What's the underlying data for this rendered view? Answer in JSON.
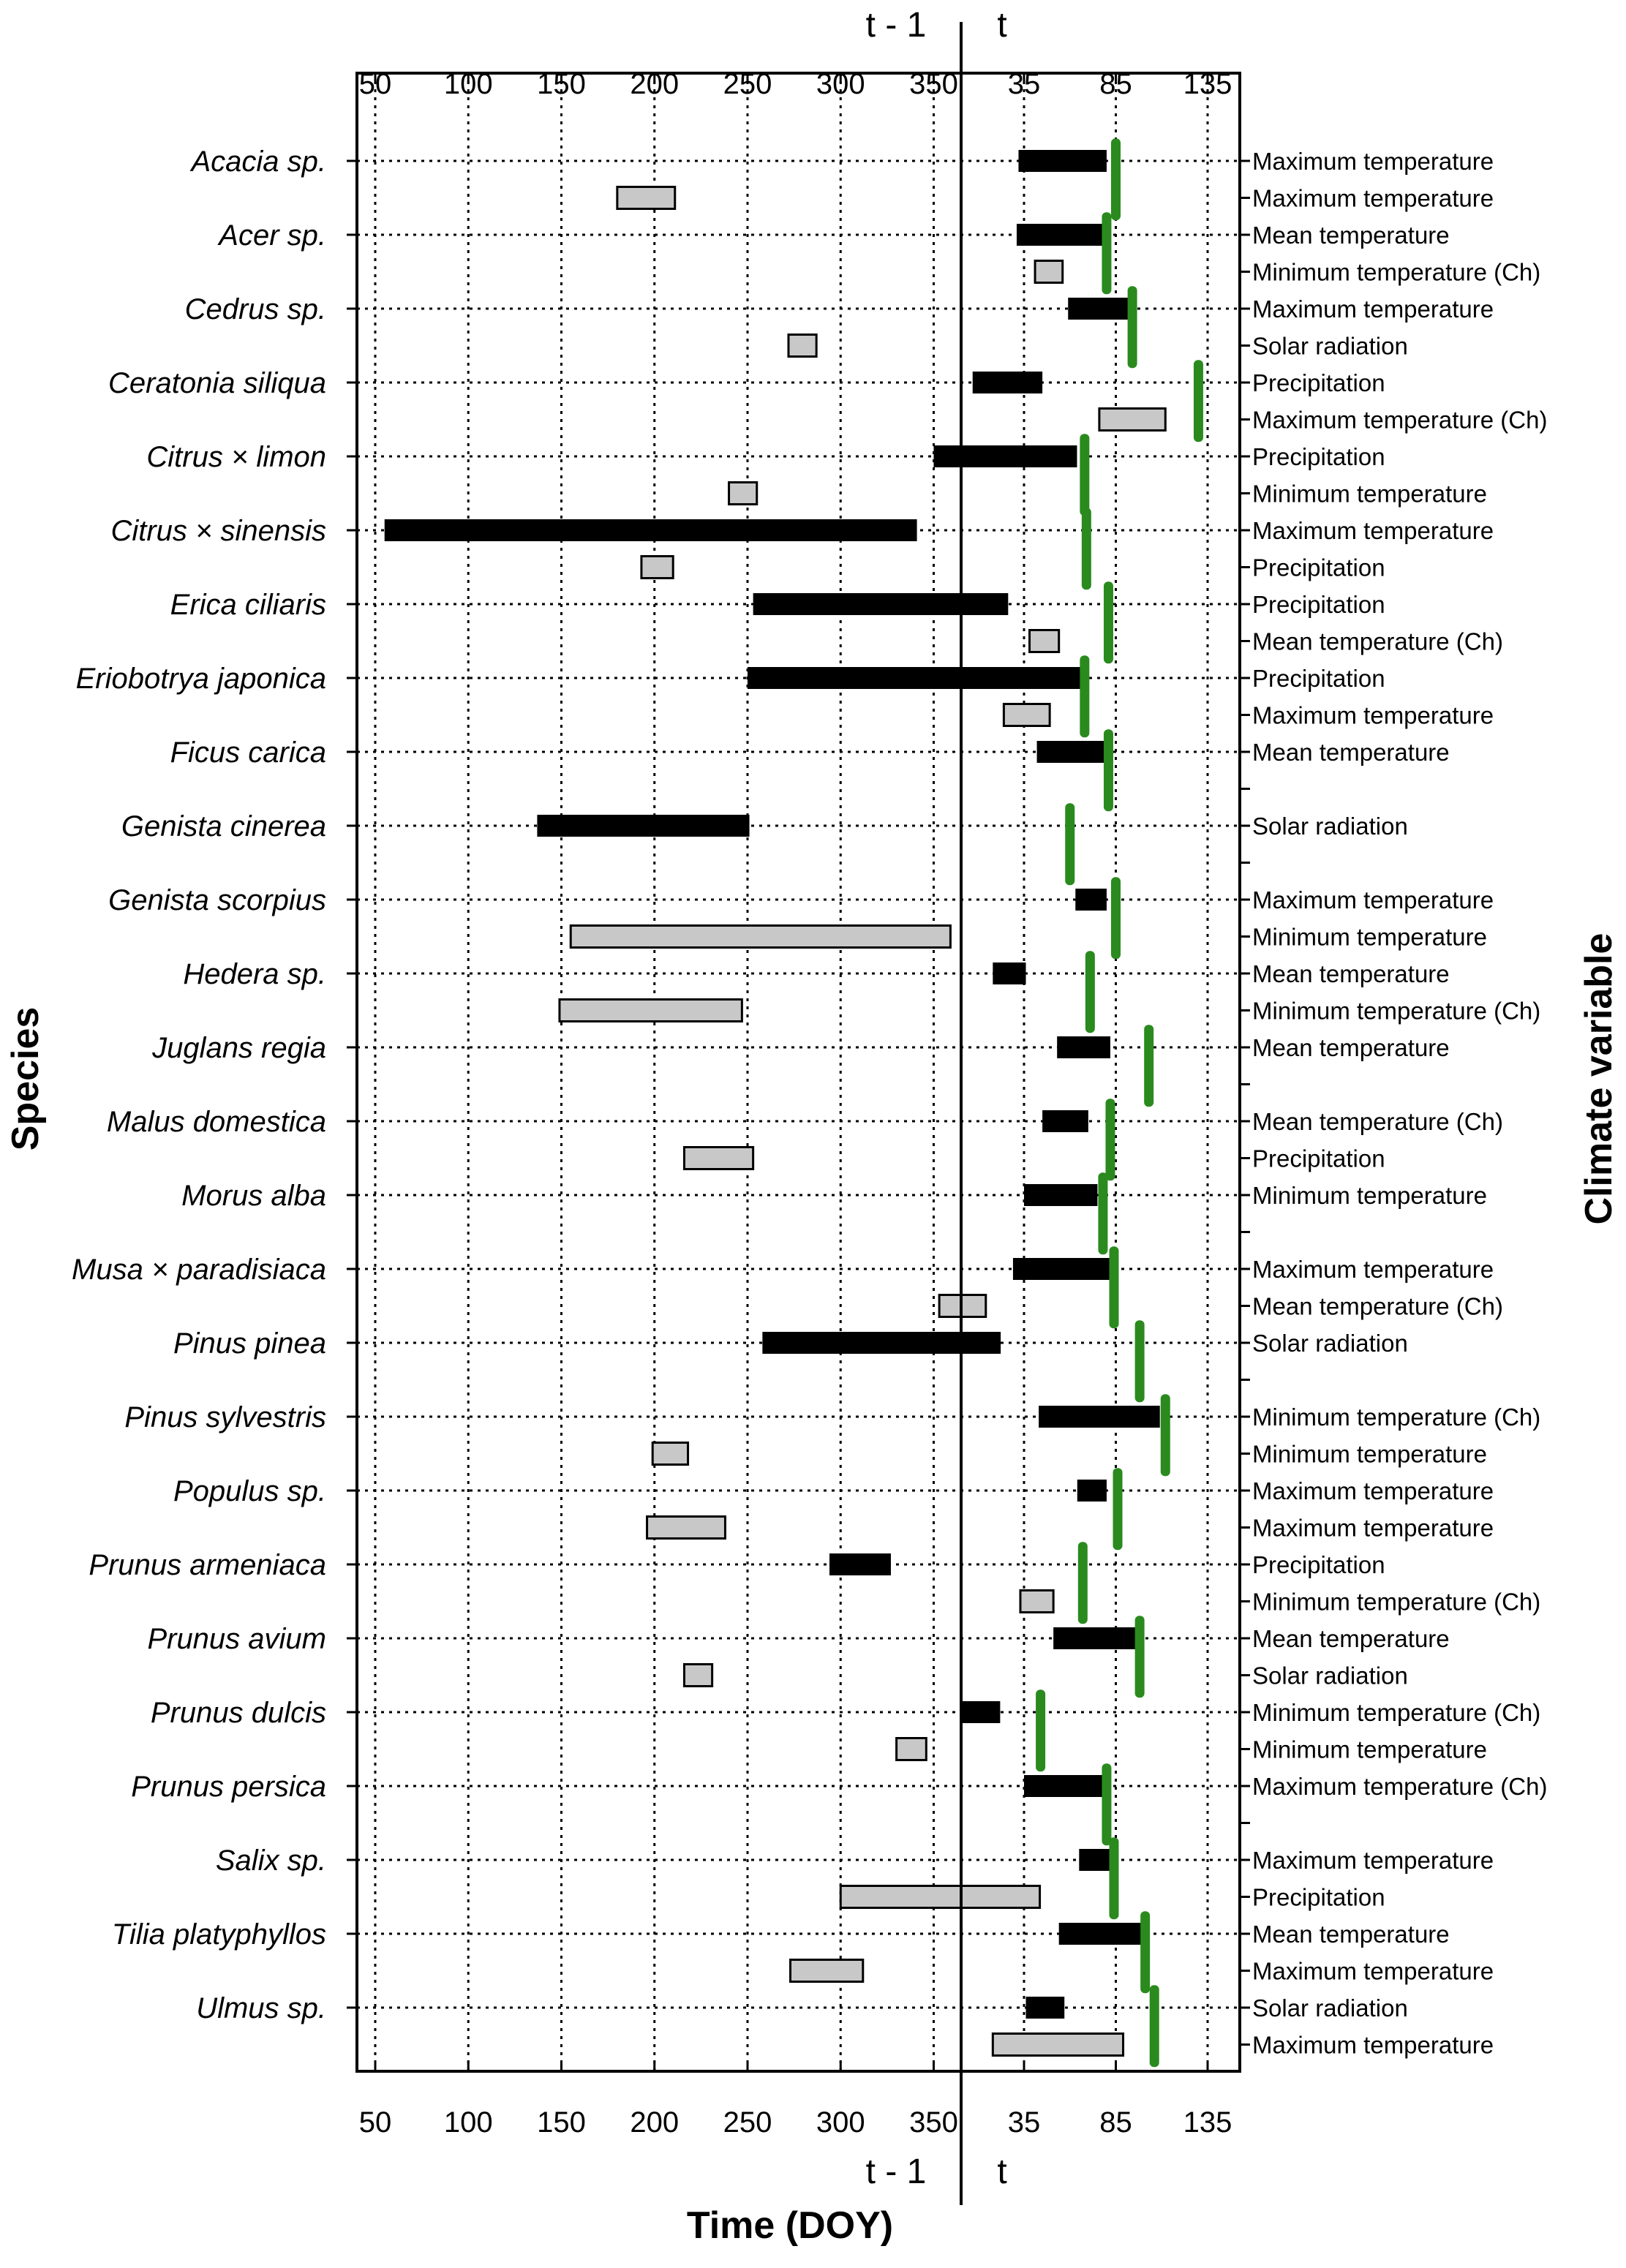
{
  "chart_data": {
    "type": "bar",
    "title": "",
    "xlabel": "Time (DOY)",
    "ylabel_left": "Species",
    "ylabel_right": "Climate variable",
    "period_labels": {
      "previous": "t - 1",
      "current": "t"
    },
    "x_ticks_previous": [
      50,
      100,
      150,
      200,
      250,
      300,
      350
    ],
    "x_ticks_current": [
      35,
      85,
      135
    ],
    "grid": true,
    "legend": "none",
    "colors": {
      "main_window": "#000000",
      "secondary_window": "#c8c8c8",
      "flowering_marker": "#2a8a1e",
      "grid": "#000000"
    },
    "species": [
      {
        "name": "Acacia sp.",
        "rows": [
          {
            "climate": "Maximum temperature",
            "window": [
              "t",
              32,
              80
            ]
          },
          {
            "climate": "Maximum temperature",
            "window": [
              "t-1",
              180,
              211
            ]
          }
        ],
        "marker": [
          "t",
          85
        ]
      },
      {
        "name": "Acer sp.",
        "rows": [
          {
            "climate": "Mean temperature",
            "window": [
              "t",
              31,
              79
            ]
          },
          {
            "climate": "Minimum temperature (Ch)",
            "window": [
              "t",
              41,
              56
            ]
          }
        ],
        "marker": [
          "t",
          80
        ]
      },
      {
        "name": "Cedrus sp.",
        "rows": [
          {
            "climate": "Maximum temperature",
            "window": [
              "t",
              59,
              93
            ]
          },
          {
            "climate": "Solar radiation",
            "window": [
              "t-1",
              272,
              287
            ]
          }
        ],
        "marker": [
          "t",
          94
        ]
      },
      {
        "name": "Ceratonia siliqua",
        "rows": [
          {
            "climate": "Precipitation",
            "window": [
              "t",
              7,
              45
            ]
          },
          {
            "climate": "Maximum temperature (Ch)",
            "window": [
              "t",
              76,
              112
            ]
          }
        ],
        "marker": [
          "t",
          130
        ]
      },
      {
        "name": "Citrus × limon",
        "rows": [
          {
            "climate": "Precipitation",
            "window": [
              "t-1",
              350,
              427
            ]
          },
          {
            "climate": "Minimum temperature",
            "window": [
              "t-1",
              240,
              255
            ]
          }
        ],
        "marker": [
          "t",
          68
        ]
      },
      {
        "name": "Citrus × sinensis",
        "rows": [
          {
            "climate": "Maximum temperature",
            "window": [
              "t-1",
              55,
              341
            ]
          },
          {
            "climate": "Precipitation",
            "window": [
              "t-1",
              193,
              210
            ]
          }
        ],
        "marker": [
          "t",
          69
        ]
      },
      {
        "name": "Erica ciliaris",
        "rows": [
          {
            "climate": "Precipitation",
            "window": [
              "t-1",
              253,
              390
            ]
          },
          {
            "climate": "Mean temperature (Ch)",
            "window": [
              "t",
              38,
              54
            ]
          }
        ],
        "marker": [
          "t",
          81
        ]
      },
      {
        "name": "Eriobotrya japonica",
        "rows": [
          {
            "climate": "Precipitation",
            "window": [
              "t-1",
              250,
              431
            ]
          },
          {
            "climate": "Maximum temperature",
            "window": [
              "t",
              24,
              49
            ]
          }
        ],
        "marker": [
          "t",
          68
        ]
      },
      {
        "name": "Ficus carica",
        "rows": [
          {
            "climate": "Mean temperature",
            "window": [
              "t",
              42,
              79
            ]
          },
          {
            "climate": "",
            "window": null
          }
        ],
        "marker": [
          "t",
          81
        ]
      },
      {
        "name": "Genista cinerea",
        "rows": [
          {
            "climate": "Solar radiation",
            "window": [
              "t-1",
              137,
              251
            ]
          },
          {
            "climate": "",
            "window": null
          }
        ],
        "marker": [
          "t",
          60
        ]
      },
      {
        "name": "Genista scorpius",
        "rows": [
          {
            "climate": "Maximum temperature",
            "window": [
              "t",
              63,
              80
            ]
          },
          {
            "climate": "Minimum temperature",
            "window": [
              "t-1",
              155,
              359
            ]
          }
        ],
        "marker": [
          "t",
          85
        ]
      },
      {
        "name": "Hedera sp.",
        "rows": [
          {
            "climate": "Mean temperature",
            "window": [
              "t",
              18,
              36
            ]
          },
          {
            "climate": "Minimum temperature (Ch)",
            "window": [
              "t-1",
              149,
              247
            ]
          }
        ],
        "marker": [
          "t",
          71
        ]
      },
      {
        "name": "Juglans regia",
        "rows": [
          {
            "climate": "Mean temperature",
            "window": [
              "t",
              53,
              82
            ]
          },
          {
            "climate": "",
            "window": null
          }
        ],
        "marker": [
          "t",
          103
        ]
      },
      {
        "name": "Malus domestica",
        "rows": [
          {
            "climate": "Mean temperature (Ch)",
            "window": [
              "t",
              45,
              70
            ]
          },
          {
            "climate": "Precipitation",
            "window": [
              "t-1",
              216,
              253
            ]
          }
        ],
        "marker": [
          "t",
          82
        ]
      },
      {
        "name": "Morus alba",
        "rows": [
          {
            "climate": "Minimum temperature",
            "window": [
              "t",
              35,
              75
            ]
          },
          {
            "climate": "",
            "window": null
          }
        ],
        "marker": [
          "t",
          78
        ]
      },
      {
        "name": "Musa × paradisiaca",
        "rows": [
          {
            "climate": "Maximum temperature",
            "window": [
              "t",
              29,
              82
            ]
          },
          {
            "climate": "Mean temperature (Ch)",
            "window": [
              "t-1",
              353,
              378
            ]
          }
        ],
        "marker": [
          "t",
          84
        ]
      },
      {
        "name": "Pinus pinea",
        "rows": [
          {
            "climate": "Solar radiation",
            "window": [
              "t-1",
              258,
              386
            ]
          },
          {
            "climate": "",
            "window": null
          }
        ],
        "marker": [
          "t",
          98
        ]
      },
      {
        "name": "Pinus sylvestris",
        "rows": [
          {
            "climate": "Minimum temperature (Ch)",
            "window": [
              "t",
              43,
              109
            ]
          },
          {
            "climate": "Minimum temperature",
            "window": [
              "t-1",
              199,
              218
            ]
          }
        ],
        "marker": [
          "t",
          112
        ]
      },
      {
        "name": "Populus sp.",
        "rows": [
          {
            "climate": "Maximum temperature",
            "window": [
              "t",
              64,
              80
            ]
          },
          {
            "climate": "Maximum temperature",
            "window": [
              "t-1",
              196,
              238
            ]
          }
        ],
        "marker": [
          "t",
          86
        ]
      },
      {
        "name": "Prunus armeniaca",
        "rows": [
          {
            "climate": "Precipitation",
            "window": [
              "t-1",
              294,
              327
            ]
          },
          {
            "climate": "Minimum temperature (Ch)",
            "window": [
              "t",
              33,
              51
            ]
          }
        ],
        "marker": [
          "t",
          67
        ]
      },
      {
        "name": "Prunus avium",
        "rows": [
          {
            "climate": "Mean temperature",
            "window": [
              "t",
              51,
              97
            ]
          },
          {
            "climate": "Solar radiation",
            "window": [
              "t-1",
              216,
              231
            ]
          }
        ],
        "marker": [
          "t",
          98
        ]
      },
      {
        "name": "Prunus dulcis",
        "rows": [
          {
            "climate": "Minimum temperature (Ch)",
            "window": [
              "t",
              1,
              22
            ]
          },
          {
            "climate": "Minimum temperature",
            "window": [
              "t-1",
              330,
              346
            ]
          }
        ],
        "marker": [
          "t",
          44
        ]
      },
      {
        "name": "Prunus persica",
        "rows": [
          {
            "climate": "Maximum temperature (Ch)",
            "window": [
              "t",
              35,
              80
            ]
          },
          {
            "climate": "",
            "window": null
          }
        ],
        "marker": [
          "t",
          80
        ]
      },
      {
        "name": "Salix sp.",
        "rows": [
          {
            "climate": "Maximum temperature",
            "window": [
              "t",
              65,
              84
            ]
          },
          {
            "climate": "Precipitation",
            "window": [
              "t-1",
              300,
              407
            ]
          }
        ],
        "marker": [
          "t",
          84
        ]
      },
      {
        "name": "Tilia platyphyllos",
        "rows": [
          {
            "climate": "Mean temperature",
            "window": [
              "t",
              54,
              99
            ]
          },
          {
            "climate": "Maximum temperature",
            "window": [
              "t-1",
              273,
              312
            ]
          }
        ],
        "marker": [
          "t",
          101
        ]
      },
      {
        "name": "Ulmus sp.",
        "rows": [
          {
            "climate": "Solar radiation",
            "window": [
              "t",
              36,
              57
            ]
          },
          {
            "climate": "Maximum temperature",
            "window": [
              "t",
              18,
              89
            ]
          }
        ],
        "marker": [
          "t",
          106
        ]
      }
    ]
  }
}
